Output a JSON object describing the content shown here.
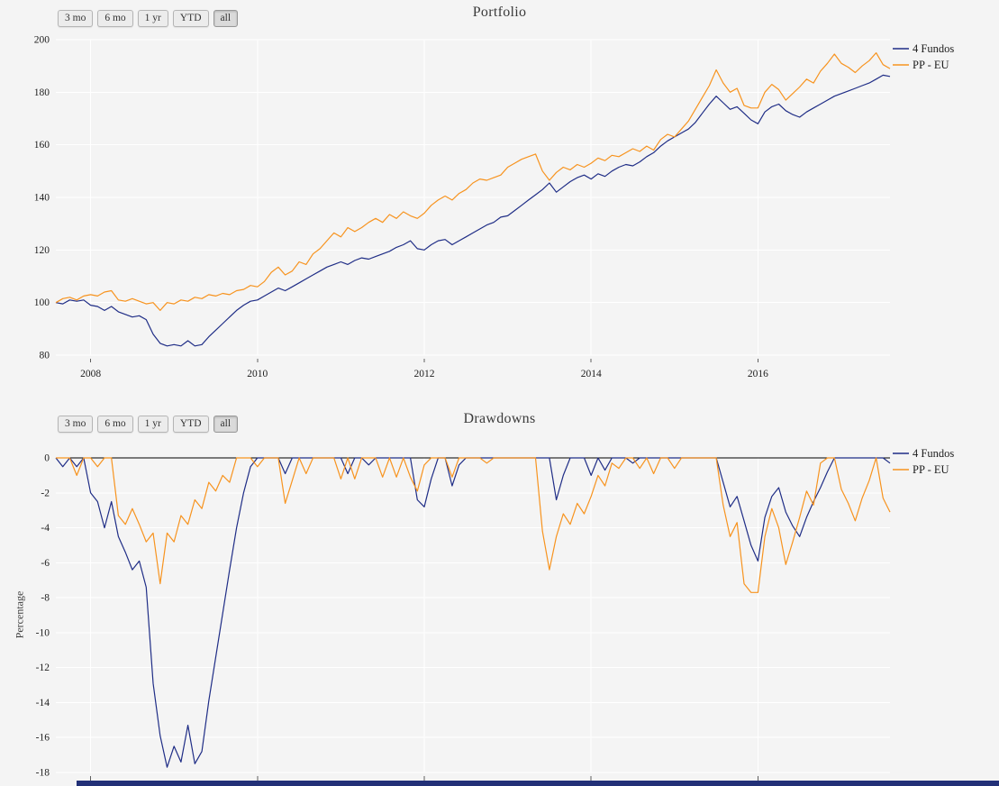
{
  "chart_data": [
    {
      "type": "line",
      "title": "Portfolio",
      "range_buttons": [
        "3 mo",
        "6 mo",
        "1 yr",
        "YTD",
        "all"
      ],
      "active_button": "all",
      "x_range": {
        "start": "2007-08",
        "end": "2017-08",
        "interval": "monthly"
      },
      "x_tick_labels": [
        "2008",
        "2010",
        "2012",
        "2014",
        "2016"
      ],
      "x_tick_indices": [
        5,
        29,
        53,
        77,
        101
      ],
      "y_ticks": [
        200,
        180,
        160,
        140,
        120,
        100,
        80
      ],
      "ylim": [
        80,
        200
      ],
      "grid": true,
      "legend_position": "top-right",
      "series": [
        {
          "name": "4 Fundos",
          "color": "#1f2d86",
          "values": [
            100,
            99.5,
            101,
            100.5,
            101,
            99,
            98.5,
            97,
            98.5,
            96.5,
            95.5,
            94.5,
            95,
            93.5,
            88,
            84.5,
            83.5,
            84,
            83.5,
            85.5,
            83.5,
            84,
            87,
            89.5,
            92,
            94.5,
            97,
            99,
            100.5,
            101,
            102.5,
            104,
            105.5,
            104.5,
            106,
            107.5,
            109,
            110.5,
            112,
            113.5,
            114.5,
            115.5,
            114.5,
            116,
            117,
            116.5,
            117.5,
            118.5,
            119.5,
            121,
            122,
            123.5,
            120.5,
            120,
            122,
            123.5,
            124,
            122,
            123.5,
            125,
            126.5,
            128,
            129.5,
            130.5,
            132.5,
            133,
            135,
            137,
            139,
            141,
            143,
            145.5,
            142,
            144,
            146,
            147.5,
            148.5,
            147,
            149,
            148,
            150,
            151.5,
            152.5,
            152,
            153.5,
            155.5,
            157,
            159.5,
            161.5,
            163,
            164.5,
            166,
            168.5,
            172,
            175.5,
            178.5,
            176,
            173.5,
            174.5,
            172,
            169.5,
            168,
            172.5,
            174.5,
            175.5,
            173,
            171.5,
            170.5,
            172.5,
            174,
            175.5,
            177,
            178.5,
            179.5,
            180.5,
            181.5,
            182.5,
            183.5,
            185,
            186.5,
            186
          ]
        },
        {
          "name": "PP - EU",
          "color": "#f7931e",
          "values": [
            100,
            101.5,
            102,
            101,
            102.5,
            103,
            102.5,
            104,
            104.5,
            101,
            100.5,
            101.5,
            100.5,
            99.5,
            100,
            97,
            100,
            99.5,
            101,
            100.5,
            102,
            101.5,
            103,
            102.5,
            103.5,
            103,
            104.5,
            105,
            106.5,
            106,
            108,
            111.5,
            113.5,
            110.5,
            112,
            115.5,
            114.5,
            118.5,
            120.5,
            123.5,
            126.5,
            125,
            128.5,
            127,
            128.5,
            130.5,
            132,
            130.5,
            133.5,
            132,
            134.5,
            133,
            132,
            134,
            137,
            139,
            140.5,
            139,
            141.5,
            143,
            145.5,
            147,
            146.5,
            147.5,
            148.5,
            151.5,
            153,
            154.5,
            155.5,
            156.5,
            150,
            146.5,
            149.5,
            151.5,
            150.5,
            152.5,
            151.5,
            153,
            155,
            154,
            156,
            155.5,
            157,
            158.5,
            157.5,
            159.5,
            158,
            162,
            164,
            163,
            166,
            169,
            173.5,
            178,
            182.5,
            188.5,
            183.5,
            180,
            181.5,
            175,
            174,
            174,
            180,
            183,
            181,
            177,
            179.5,
            182,
            185,
            183.5,
            188,
            191,
            194.5,
            191,
            189.5,
            187.5,
            190,
            192,
            195,
            190.5,
            189
          ]
        }
      ]
    },
    {
      "type": "line",
      "title": "Drawdowns",
      "ylabel": "Percentage",
      "range_buttons": [
        "3 mo",
        "6 mo",
        "1 yr",
        "YTD",
        "all"
      ],
      "active_button": "all",
      "x_range": {
        "start": "2007-08",
        "end": "2017-08",
        "interval": "monthly"
      },
      "x_tick_labels": [],
      "x_tick_indices": [
        5,
        29,
        53,
        77,
        101
      ],
      "y_ticks": [
        0,
        -2,
        -4,
        -6,
        -8,
        -10,
        -12,
        -14,
        -16,
        -18
      ],
      "ylim": [
        -18,
        0
      ],
      "grid": true,
      "zero_line": true,
      "legend_position": "top-right",
      "series": [
        {
          "name": "4 Fundos",
          "color": "#1f2d86",
          "values": [
            0,
            -0.5,
            0,
            -0.5,
            0,
            -2,
            -2.5,
            -4,
            -2.5,
            -4.5,
            -5.4,
            -6.4,
            -5.9,
            -7.4,
            -12.9,
            -15.9,
            -17.7,
            -16.5,
            -17.4,
            -15.3,
            -17.5,
            -16.8,
            -13.9,
            -11.4,
            -8.9,
            -6.4,
            -4,
            -2,
            -0.5,
            0,
            0,
            0,
            0,
            -0.9,
            0,
            0,
            0,
            0,
            0,
            0,
            0,
            0,
            -0.9,
            0,
            0,
            -0.4,
            0,
            0,
            0,
            0,
            0,
            0,
            -2.4,
            -2.8,
            -1.2,
            0,
            0,
            -1.6,
            -0.4,
            0,
            0,
            0,
            0,
            0,
            0,
            0,
            0,
            0,
            0,
            0,
            0,
            0,
            -2.4,
            -1,
            0,
            0,
            0,
            -1,
            0,
            -0.7,
            0,
            0,
            0,
            -0.3,
            0,
            0,
            0,
            0,
            0,
            0,
            0,
            0,
            0,
            0,
            0,
            0,
            -1.4,
            -2.8,
            -2.2,
            -3.6,
            -5,
            -5.9,
            -3.4,
            -2.2,
            -1.7,
            -3.1,
            -3.9,
            -4.5,
            -3.4,
            -2.5,
            -1.7,
            -0.8,
            0,
            0,
            0,
            0,
            0,
            0,
            0,
            0,
            -0.3
          ]
        },
        {
          "name": "PP - EU",
          "color": "#f7931e",
          "values": [
            0,
            0,
            0,
            -1,
            0,
            0,
            -0.5,
            0,
            0,
            -3.3,
            -3.8,
            -2.9,
            -3.8,
            -4.8,
            -4.3,
            -7.2,
            -4.3,
            -4.8,
            -3.3,
            -3.8,
            -2.4,
            -2.9,
            -1.4,
            -1.9,
            -1,
            -1.4,
            0,
            0,
            0,
            -0.5,
            0,
            0,
            0,
            -2.6,
            -1.3,
            0,
            -0.9,
            0,
            0,
            0,
            0,
            -1.2,
            0,
            -1.2,
            0,
            0,
            0,
            -1.1,
            0,
            -1.1,
            0,
            -1.1,
            -1.9,
            -0.4,
            0,
            0,
            0,
            -1.1,
            0,
            0,
            0,
            0,
            -0.3,
            0,
            0,
            0,
            0,
            0,
            0,
            0,
            -4.2,
            -6.4,
            -4.5,
            -3.2,
            -3.8,
            -2.6,
            -3.2,
            -2.2,
            -1,
            -1.6,
            -0.3,
            -0.6,
            0,
            0,
            -0.6,
            0,
            -0.9,
            0,
            0,
            -0.6,
            0,
            0,
            0,
            0,
            0,
            0,
            -2.7,
            -4.5,
            -3.7,
            -7.2,
            -7.7,
            -7.7,
            -4.5,
            -2.9,
            -4,
            -6.1,
            -4.8,
            -3.4,
            -1.9,
            -2.7,
            -0.3,
            0,
            0,
            -1.8,
            -2.6,
            -3.6,
            -2.3,
            -1.3,
            0,
            -2.3,
            -3.1
          ]
        }
      ]
    }
  ]
}
